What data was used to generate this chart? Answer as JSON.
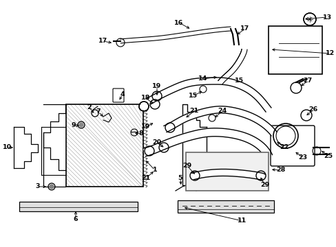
{
  "bg": "#ffffff",
  "lc": "#000000",
  "figsize": [
    4.89,
    3.6
  ],
  "dpi": 100
}
